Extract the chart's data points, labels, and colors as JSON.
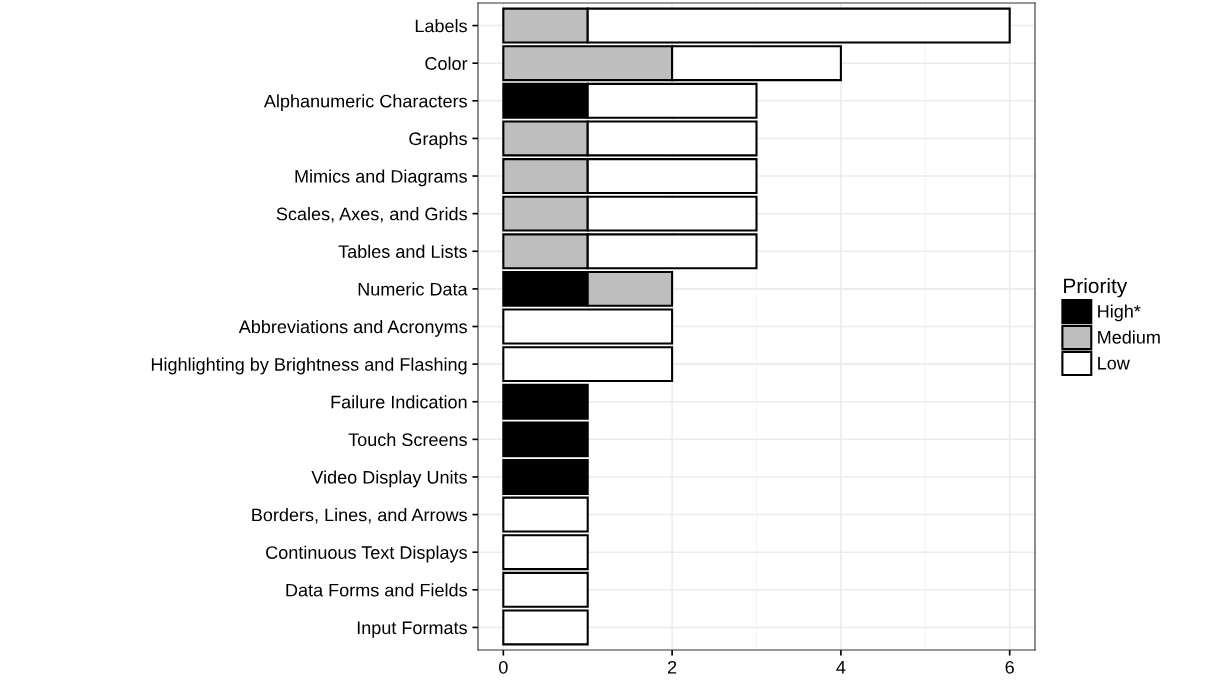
{
  "chart_data": {
    "type": "bar",
    "orientation": "horizontal",
    "stacked": true,
    "categories": [
      "Labels",
      "Color",
      "Alphanumeric Characters",
      "Graphs",
      "Mimics and Diagrams",
      "Scales, Axes, and Grids",
      "Tables and Lists",
      "Numeric Data",
      "Abbreviations and Acronyms",
      "Highlighting by Brightness and Flashing",
      "Failure Indication",
      "Touch Screens",
      "Video Display Units",
      "Borders, Lines, and Arrows",
      "Continuous Text Displays",
      "Data Forms and Fields",
      "Input Formats"
    ],
    "series": [
      {
        "name": "High*",
        "color": "#000000",
        "values": [
          0,
          0,
          1,
          0,
          0,
          0,
          0,
          1,
          0,
          0,
          1,
          1,
          1,
          0,
          0,
          0,
          0
        ]
      },
      {
        "name": "Medium",
        "color": "#bebebe",
        "values": [
          1,
          2,
          0,
          1,
          1,
          1,
          1,
          1,
          0,
          0,
          0,
          0,
          0,
          0,
          0,
          0,
          0
        ]
      },
      {
        "name": "Low",
        "color": "#ffffff",
        "values": [
          5,
          2,
          2,
          2,
          2,
          2,
          2,
          0,
          2,
          2,
          0,
          0,
          0,
          1,
          1,
          1,
          1
        ]
      }
    ],
    "xlim": [
      -0.3,
      6.3
    ],
    "xticks": [
      0,
      2,
      4,
      6
    ],
    "grid": true,
    "legend": "right",
    "legend_title": "Priority"
  }
}
